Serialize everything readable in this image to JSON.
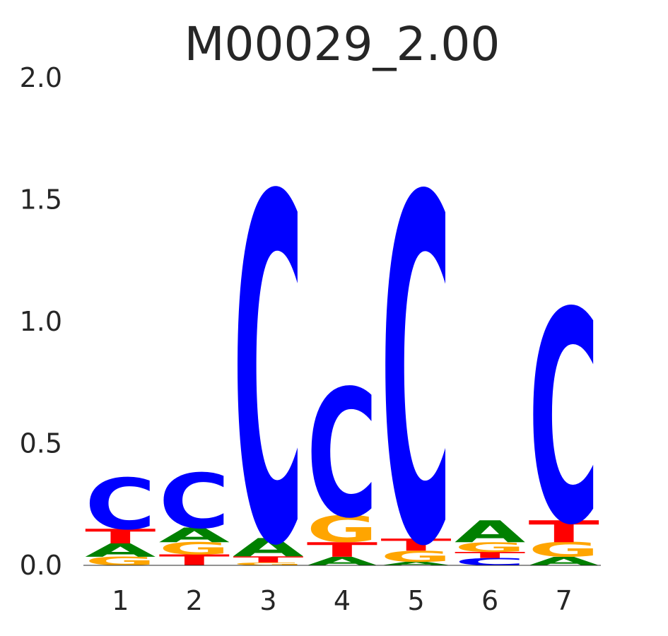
{
  "chart_data": {
    "type": "sequence-logo",
    "title": "M00029_2.00",
    "ylim": [
      0,
      2.0
    ],
    "yticks": [
      "0.0",
      "0.5",
      "1.0",
      "1.5",
      "2.0"
    ],
    "xticks": [
      "1",
      "2",
      "3",
      "4",
      "5",
      "6",
      "7"
    ],
    "grid": false,
    "legend": "none",
    "colors": {
      "A": "#008000",
      "C": "#0000ff",
      "G": "#ffa500",
      "T": "#ff0000"
    },
    "positions": [
      {
        "label": "1",
        "stack": [
          {
            "base": "G",
            "height": 0.035
          },
          {
            "base": "A",
            "height": 0.055
          },
          {
            "base": "T",
            "height": 0.06
          },
          {
            "base": "C",
            "height": 0.21
          }
        ]
      },
      {
        "label": "2",
        "stack": [
          {
            "base": "T",
            "height": 0.045
          },
          {
            "base": "G",
            "height": 0.05
          },
          {
            "base": "A",
            "height": 0.06
          },
          {
            "base": "C",
            "height": 0.225
          }
        ]
      },
      {
        "label": "3",
        "stack": [
          {
            "base": "G",
            "height": 0.012
          },
          {
            "base": "T",
            "height": 0.025
          },
          {
            "base": "A",
            "height": 0.075
          },
          {
            "base": "C",
            "height": 1.42
          }
        ]
      },
      {
        "label": "4",
        "stack": [
          {
            "base": "A",
            "height": 0.035
          },
          {
            "base": "T",
            "height": 0.06
          },
          {
            "base": "G",
            "height": 0.11
          },
          {
            "base": "C",
            "height": 0.525
          }
        ]
      },
      {
        "label": "5",
        "stack": [
          {
            "base": "A",
            "height": 0.015
          },
          {
            "base": "G",
            "height": 0.045
          },
          {
            "base": "T",
            "height": 0.05
          },
          {
            "base": "C",
            "height": 1.42
          }
        ]
      },
      {
        "label": "6",
        "stack": [
          {
            "base": "C",
            "height": 0.03
          },
          {
            "base": "T",
            "height": 0.025
          },
          {
            "base": "G",
            "height": 0.04
          },
          {
            "base": "A",
            "height": 0.09
          }
        ]
      },
      {
        "label": "7",
        "stack": [
          {
            "base": "A",
            "height": 0.035
          },
          {
            "base": "G",
            "height": 0.06
          },
          {
            "base": "T",
            "height": 0.09
          },
          {
            "base": "C",
            "height": 0.87
          }
        ]
      }
    ]
  }
}
